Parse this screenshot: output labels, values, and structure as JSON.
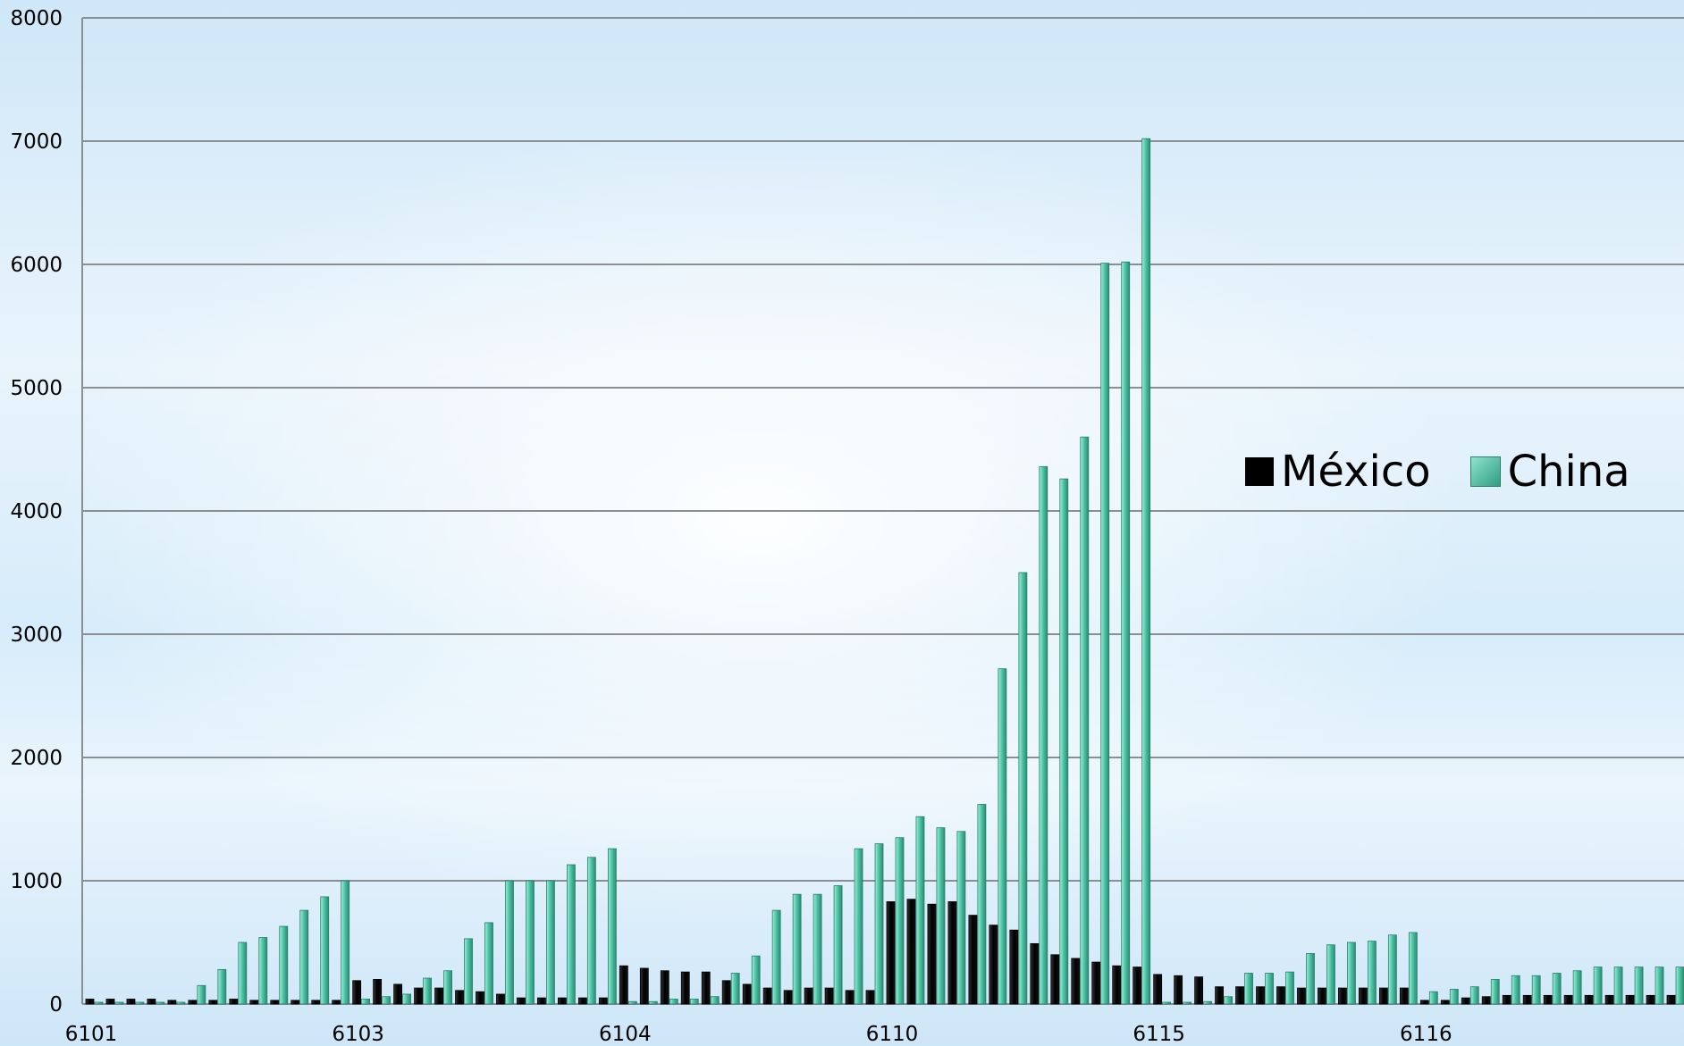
{
  "chart_data": {
    "type": "bar",
    "ylim": [
      0,
      8000
    ],
    "yticks": [
      0,
      1000,
      2000,
      3000,
      4000,
      5000,
      6000,
      7000,
      8000
    ],
    "xtick_labels": [
      "6101",
      "6103",
      "6104",
      "6110",
      "6115",
      "6116"
    ],
    "xtick_positions": [
      0,
      13,
      26,
      39,
      52,
      65
    ],
    "series": [
      {
        "name": "México",
        "color": "#000000",
        "values": [
          40,
          40,
          40,
          40,
          30,
          30,
          30,
          40,
          30,
          30,
          30,
          30,
          30,
          190,
          200,
          160,
          130,
          130,
          110,
          100,
          80,
          50,
          50,
          50,
          50,
          50,
          310,
          290,
          270,
          260,
          260,
          190,
          160,
          130,
          110,
          130,
          130,
          110,
          110,
          830,
          850,
          810,
          830,
          720,
          640,
          600,
          490,
          400,
          370,
          340,
          310,
          300,
          240,
          230,
          220,
          140,
          140,
          140,
          140,
          130,
          130,
          130,
          130,
          130,
          130,
          30,
          30,
          50,
          60,
          70,
          70,
          70,
          70,
          70,
          70,
          70,
          70,
          70
        ]
      },
      {
        "name": "China",
        "color": "#3cb89a",
        "values": [
          0,
          0,
          0,
          0,
          0,
          150,
          280,
          500,
          540,
          630,
          760,
          870,
          1000,
          40,
          60,
          80,
          210,
          270,
          530,
          660,
          1000,
          1000,
          1000,
          1130,
          1190,
          1260,
          20,
          20,
          40,
          40,
          60,
          250,
          390,
          760,
          890,
          890,
          960,
          1260,
          1300,
          1350,
          1520,
          1430,
          1400,
          1620,
          2720,
          3500,
          4360,
          4260,
          4600,
          6010,
          6020,
          7020,
          0,
          0,
          20,
          60,
          250,
          250,
          260,
          410,
          480,
          500,
          510,
          560,
          580,
          100,
          120,
          140,
          200,
          230,
          230,
          250,
          270,
          300,
          300,
          300,
          300,
          300
        ]
      }
    ]
  }
}
